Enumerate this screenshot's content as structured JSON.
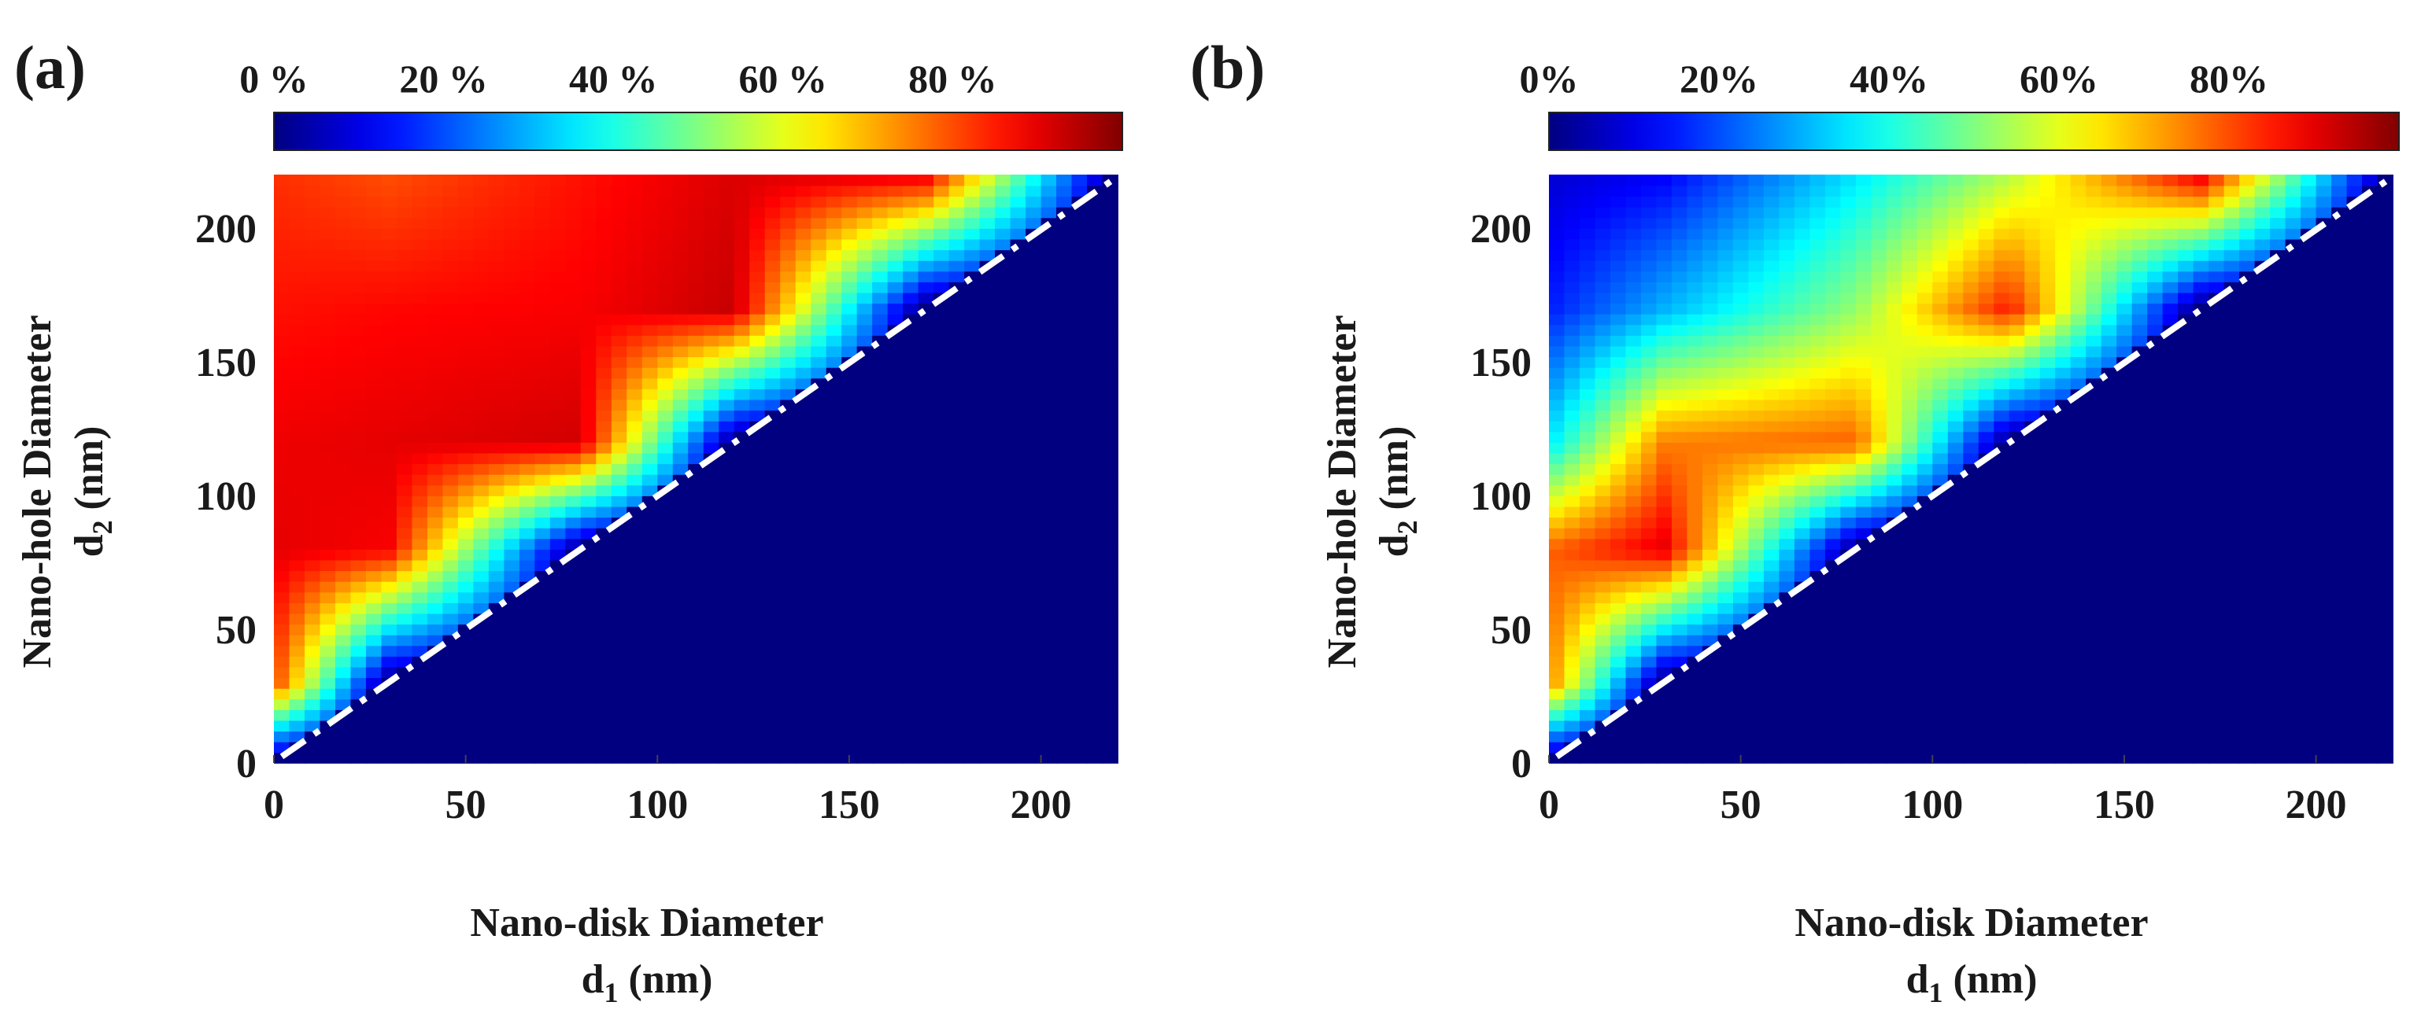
{
  "chart_data": [
    {
      "type": "heatmap",
      "panel_label": "(a)",
      "colormap": "jet",
      "colorbar": {
        "min": 0,
        "max": 100,
        "ticks": [
          0,
          20,
          40,
          60,
          80
        ],
        "tick_labels": [
          "0 %",
          "20 %",
          "40 %",
          "60 %",
          "80 %"
        ]
      },
      "xlabel": "Nano-disk Diameter",
      "xlabel_unit": {
        "base": "d",
        "sub": "1",
        "rest": " (nm)"
      },
      "ylabel": "Nano-hole Diameter",
      "ylabel_unit": {
        "base": "d",
        "sub": "2",
        "rest": " (nm)"
      },
      "xlim": [
        0,
        220
      ],
      "ylim": [
        0,
        220
      ],
      "xticks": [
        0,
        50,
        100,
        150,
        200
      ],
      "yticks": [
        0,
        50,
        100,
        150,
        200
      ],
      "x_nodes": [
        0,
        30,
        80,
        120,
        170,
        220
      ],
      "y_nodes": [
        0,
        30,
        80,
        120,
        170,
        220
      ],
      "values_percent_by_row_y": [
        [
          0,
          0,
          0,
          0,
          0,
          0
        ],
        [
          82,
          0,
          0,
          0,
          0,
          0
        ],
        [
          90,
          88,
          0,
          0,
          0,
          0
        ],
        [
          89,
          90,
          92,
          0,
          0,
          0
        ],
        [
          86,
          87,
          88,
          93,
          0,
          0
        ],
        [
          83,
          80,
          86,
          91,
          90,
          0
        ]
      ],
      "reference_line": {
        "style": "dash-dot",
        "color": "#ffffff",
        "from": [
          0,
          0
        ],
        "to": [
          220,
          220
        ]
      }
    },
    {
      "type": "heatmap",
      "panel_label": "(b)",
      "colormap": "jet",
      "colorbar": {
        "min": 0,
        "max": 100,
        "ticks": [
          0,
          20,
          40,
          60,
          80
        ],
        "tick_labels": [
          "0%",
          "20%",
          "40%",
          "60%",
          "80%"
        ]
      },
      "xlabel": "Nano-disk Diameter",
      "xlabel_unit": {
        "base": "d",
        "sub": "1",
        "rest": " (nm)"
      },
      "ylabel": "Nano-hole Diameter",
      "ylabel_unit": {
        "base": "d",
        "sub": "2",
        "rest": " (nm)"
      },
      "xlim": [
        0,
        220
      ],
      "ylim": [
        0,
        220
      ],
      "xticks": [
        0,
        50,
        100,
        150,
        200
      ],
      "yticks": [
        0,
        50,
        100,
        150,
        200
      ],
      "x_nodes": [
        0,
        30,
        80,
        120,
        170,
        220
      ],
      "y_nodes": [
        0,
        30,
        80,
        120,
        170,
        220
      ],
      "values_percent_by_row_y": [
        [
          0,
          0,
          0,
          0,
          0,
          0
        ],
        [
          75,
          0,
          0,
          0,
          0,
          0
        ],
        [
          78,
          90,
          0,
          0,
          0,
          0
        ],
        [
          35,
          75,
          78,
          0,
          0,
          0
        ],
        [
          15,
          30,
          52,
          85,
          0,
          0
        ],
        [
          8,
          12,
          35,
          55,
          90,
          0
        ]
      ],
      "reference_line": {
        "style": "dash-dot",
        "color": "#ffffff",
        "from": [
          0,
          0
        ],
        "to": [
          220,
          220
        ]
      }
    }
  ]
}
